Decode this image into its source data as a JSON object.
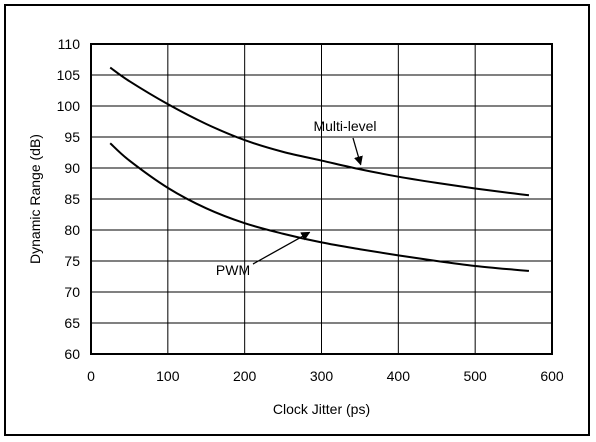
{
  "chart_data": {
    "type": "line",
    "title": "",
    "xlabel": "Clock Jitter (ps)",
    "ylabel": "Dynamic Range (dB)",
    "xlim": [
      0,
      600
    ],
    "ylim": [
      60,
      110
    ],
    "xticks": [
      0,
      100,
      200,
      300,
      400,
      500,
      600
    ],
    "yticks": [
      60,
      65,
      70,
      75,
      80,
      85,
      90,
      95,
      100,
      105,
      110
    ],
    "grid": true,
    "series": [
      {
        "name": "Multi-level",
        "x": [
          25,
          50,
          100,
          150,
          200,
          250,
          300,
          350,
          400,
          450,
          500,
          550,
          570
        ],
        "y": [
          106.2,
          104.0,
          100.3,
          97.1,
          94.5,
          92.6,
          91.2,
          89.8,
          88.6,
          87.6,
          86.7,
          85.9,
          85.6
        ],
        "color": "#000000"
      },
      {
        "name": "PWM",
        "x": [
          25,
          50,
          100,
          150,
          200,
          250,
          300,
          350,
          400,
          450,
          500,
          550,
          570
        ],
        "y": [
          94.0,
          91.2,
          86.8,
          83.5,
          81.1,
          79.4,
          78.0,
          76.9,
          75.9,
          75.0,
          74.2,
          73.6,
          73.4
        ],
        "color": "#000000"
      }
    ],
    "annotations": [
      {
        "text": "Multi-level",
        "series": "Multi-level",
        "arrow_to": [
          338,
          89.9
        ]
      },
      {
        "text": "PWM",
        "series": "PWM",
        "arrow_to": [
          248,
          80.1
        ]
      }
    ]
  }
}
